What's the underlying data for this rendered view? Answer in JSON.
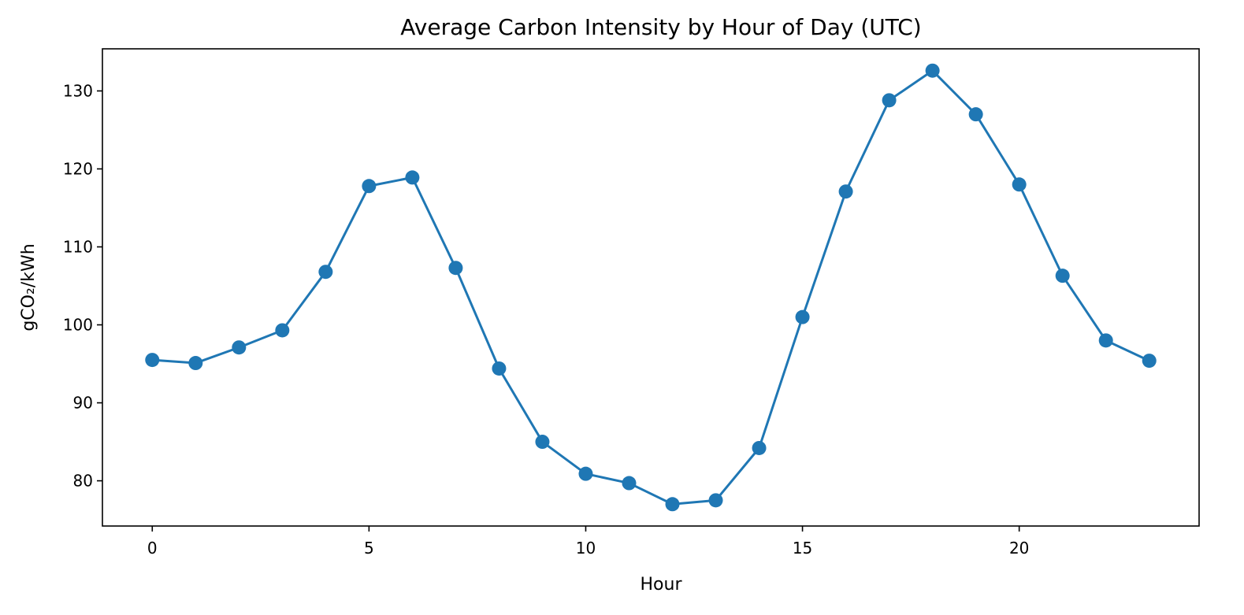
{
  "chart_data": {
    "type": "line",
    "title": "Average Carbon Intensity by Hour of Day (UTC)",
    "xlabel": "Hour",
    "ylabel": "gCO₂/kWh",
    "x": [
      0,
      1,
      2,
      3,
      4,
      5,
      6,
      7,
      8,
      9,
      10,
      11,
      12,
      13,
      14,
      15,
      16,
      17,
      18,
      19,
      20,
      21,
      22,
      23
    ],
    "series": [
      {
        "values": [
          95.5,
          95.1,
          97.1,
          99.3,
          106.8,
          117.8,
          118.9,
          107.3,
          94.4,
          85.0,
          80.9,
          79.7,
          77.0,
          77.5,
          84.2,
          101.0,
          117.1,
          128.8,
          132.6,
          127.0,
          118.0,
          106.3,
          98.0,
          95.4
        ],
        "color": "#1f77b4",
        "marker": "circle"
      }
    ],
    "xlim": [
      -1.15,
      24.15
    ],
    "ylim": [
      74.2,
      135.4
    ],
    "xticks": [
      0,
      5,
      10,
      15,
      20
    ],
    "xtick_labels": [
      "0",
      "5",
      "10",
      "15",
      "20"
    ],
    "yticks": [
      80,
      90,
      100,
      110,
      120,
      130
    ],
    "ytick_labels": [
      "80",
      "90",
      "100",
      "110",
      "120",
      "130"
    ],
    "grid": false,
    "legend": "none"
  }
}
